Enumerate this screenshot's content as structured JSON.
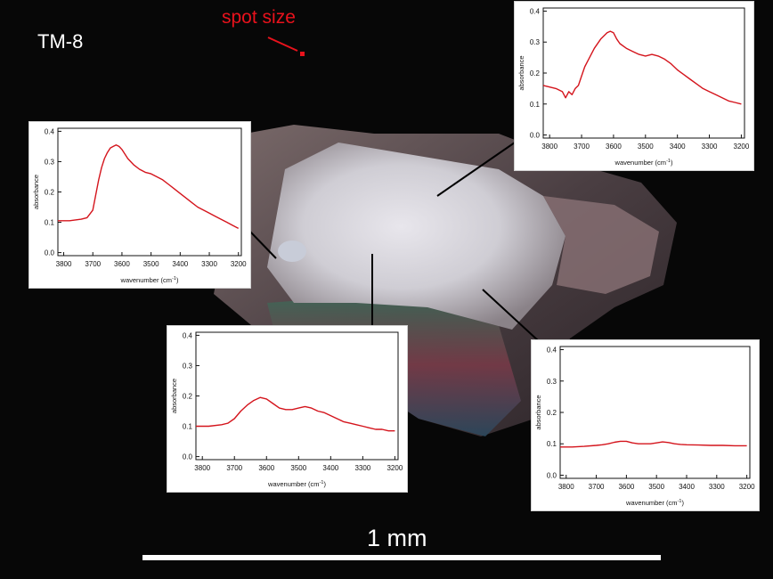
{
  "sample_label": "TM-8",
  "spot_label": "spot size",
  "scale_label": "1 mm",
  "colors": {
    "spectrum": "#d4141c",
    "annotation": "#e8121c",
    "text": "#ffffff"
  },
  "chart_data": [
    {
      "type": "line",
      "xlabel": "wavenumber (cm",
      "xlabel_sup": "-1",
      "xlabel_end": ")",
      "ylabel": "absorbance",
      "xlim": [
        3820,
        3190
      ],
      "ylim": [
        -0.01,
        0.41
      ],
      "x_ticks": [
        "3800",
        "3700",
        "3600",
        "3500",
        "3400",
        "3300",
        "3200"
      ],
      "y_ticks": [
        "0.0",
        "0.1",
        "0.2",
        "0.3",
        "0.4"
      ],
      "series": [
        {
          "x": [
            3820,
            3780,
            3760,
            3750,
            3740,
            3730,
            3720,
            3710,
            3700,
            3690,
            3680,
            3660,
            3640,
            3620,
            3610,
            3600,
            3590,
            3580,
            3560,
            3540,
            3520,
            3500,
            3480,
            3460,
            3440,
            3420,
            3400,
            3380,
            3360,
            3340,
            3320,
            3300,
            3280,
            3260,
            3240,
            3220,
            3200
          ],
          "y": [
            0.16,
            0.15,
            0.14,
            0.12,
            0.14,
            0.13,
            0.15,
            0.16,
            0.19,
            0.22,
            0.24,
            0.28,
            0.31,
            0.33,
            0.335,
            0.33,
            0.31,
            0.295,
            0.28,
            0.27,
            0.26,
            0.255,
            0.26,
            0.255,
            0.245,
            0.23,
            0.21,
            0.195,
            0.18,
            0.165,
            0.15,
            0.14,
            0.13,
            0.12,
            0.11,
            0.105,
            0.1
          ]
        }
      ]
    },
    {
      "type": "line",
      "xlabel": "wavenumber (cm",
      "xlabel_sup": "-1",
      "xlabel_end": ")",
      "ylabel": "absorbance",
      "xlim": [
        3820,
        3190
      ],
      "ylim": [
        -0.01,
        0.41
      ],
      "x_ticks": [
        "3800",
        "3700",
        "3600",
        "3500",
        "3400",
        "3300",
        "3200"
      ],
      "y_ticks": [
        "0.0",
        "0.1",
        "0.2",
        "0.3",
        "0.4"
      ],
      "series": [
        {
          "x": [
            3820,
            3780,
            3740,
            3720,
            3700,
            3690,
            3680,
            3670,
            3660,
            3650,
            3640,
            3630,
            3620,
            3610,
            3600,
            3590,
            3580,
            3560,
            3540,
            3520,
            3500,
            3480,
            3460,
            3440,
            3420,
            3400,
            3380,
            3360,
            3340,
            3320,
            3300,
            3280,
            3260,
            3240,
            3220,
            3200
          ],
          "y": [
            0.105,
            0.105,
            0.11,
            0.115,
            0.14,
            0.19,
            0.24,
            0.28,
            0.31,
            0.33,
            0.345,
            0.35,
            0.355,
            0.35,
            0.34,
            0.325,
            0.31,
            0.29,
            0.275,
            0.265,
            0.26,
            0.25,
            0.24,
            0.225,
            0.21,
            0.195,
            0.18,
            0.165,
            0.15,
            0.14,
            0.13,
            0.12,
            0.11,
            0.1,
            0.09,
            0.08
          ]
        }
      ]
    },
    {
      "type": "line",
      "xlabel": "wavenumber (cm",
      "xlabel_sup": "-1",
      "xlabel_end": ")",
      "ylabel": "absorbance",
      "xlim": [
        3820,
        3190
      ],
      "ylim": [
        -0.01,
        0.41
      ],
      "x_ticks": [
        "3800",
        "3700",
        "3600",
        "3500",
        "3400",
        "3300",
        "3200"
      ],
      "y_ticks": [
        "0.0",
        "0.1",
        "0.2",
        "0.3",
        "0.4"
      ],
      "series": [
        {
          "x": [
            3820,
            3780,
            3740,
            3720,
            3700,
            3680,
            3660,
            3640,
            3620,
            3600,
            3580,
            3560,
            3540,
            3520,
            3500,
            3480,
            3460,
            3440,
            3420,
            3400,
            3380,
            3360,
            3340,
            3320,
            3300,
            3280,
            3260,
            3240,
            3220,
            3200
          ],
          "y": [
            0.1,
            0.1,
            0.105,
            0.11,
            0.125,
            0.15,
            0.17,
            0.185,
            0.195,
            0.19,
            0.175,
            0.16,
            0.155,
            0.155,
            0.16,
            0.165,
            0.16,
            0.15,
            0.145,
            0.135,
            0.125,
            0.115,
            0.11,
            0.105,
            0.1,
            0.095,
            0.09,
            0.09,
            0.085,
            0.085
          ]
        }
      ]
    },
    {
      "type": "line",
      "xlabel": "wavenumber (cm",
      "xlabel_sup": "-1",
      "xlabel_end": ")",
      "ylabel": "absorbance",
      "xlim": [
        3820,
        3190
      ],
      "ylim": [
        -0.01,
        0.41
      ],
      "x_ticks": [
        "3800",
        "3700",
        "3600",
        "3500",
        "3400",
        "3300",
        "3200"
      ],
      "y_ticks": [
        "0.0",
        "0.1",
        "0.2",
        "0.3",
        "0.4"
      ],
      "series": [
        {
          "x": [
            3820,
            3780,
            3740,
            3700,
            3680,
            3660,
            3640,
            3620,
            3600,
            3580,
            3560,
            3540,
            3520,
            3500,
            3480,
            3460,
            3440,
            3420,
            3400,
            3360,
            3320,
            3280,
            3240,
            3200
          ],
          "y": [
            0.09,
            0.09,
            0.092,
            0.095,
            0.097,
            0.1,
            0.105,
            0.108,
            0.108,
            0.103,
            0.1,
            0.1,
            0.1,
            0.103,
            0.106,
            0.104,
            0.1,
            0.098,
            0.097,
            0.096,
            0.095,
            0.095,
            0.094,
            0.094
          ]
        }
      ]
    }
  ]
}
